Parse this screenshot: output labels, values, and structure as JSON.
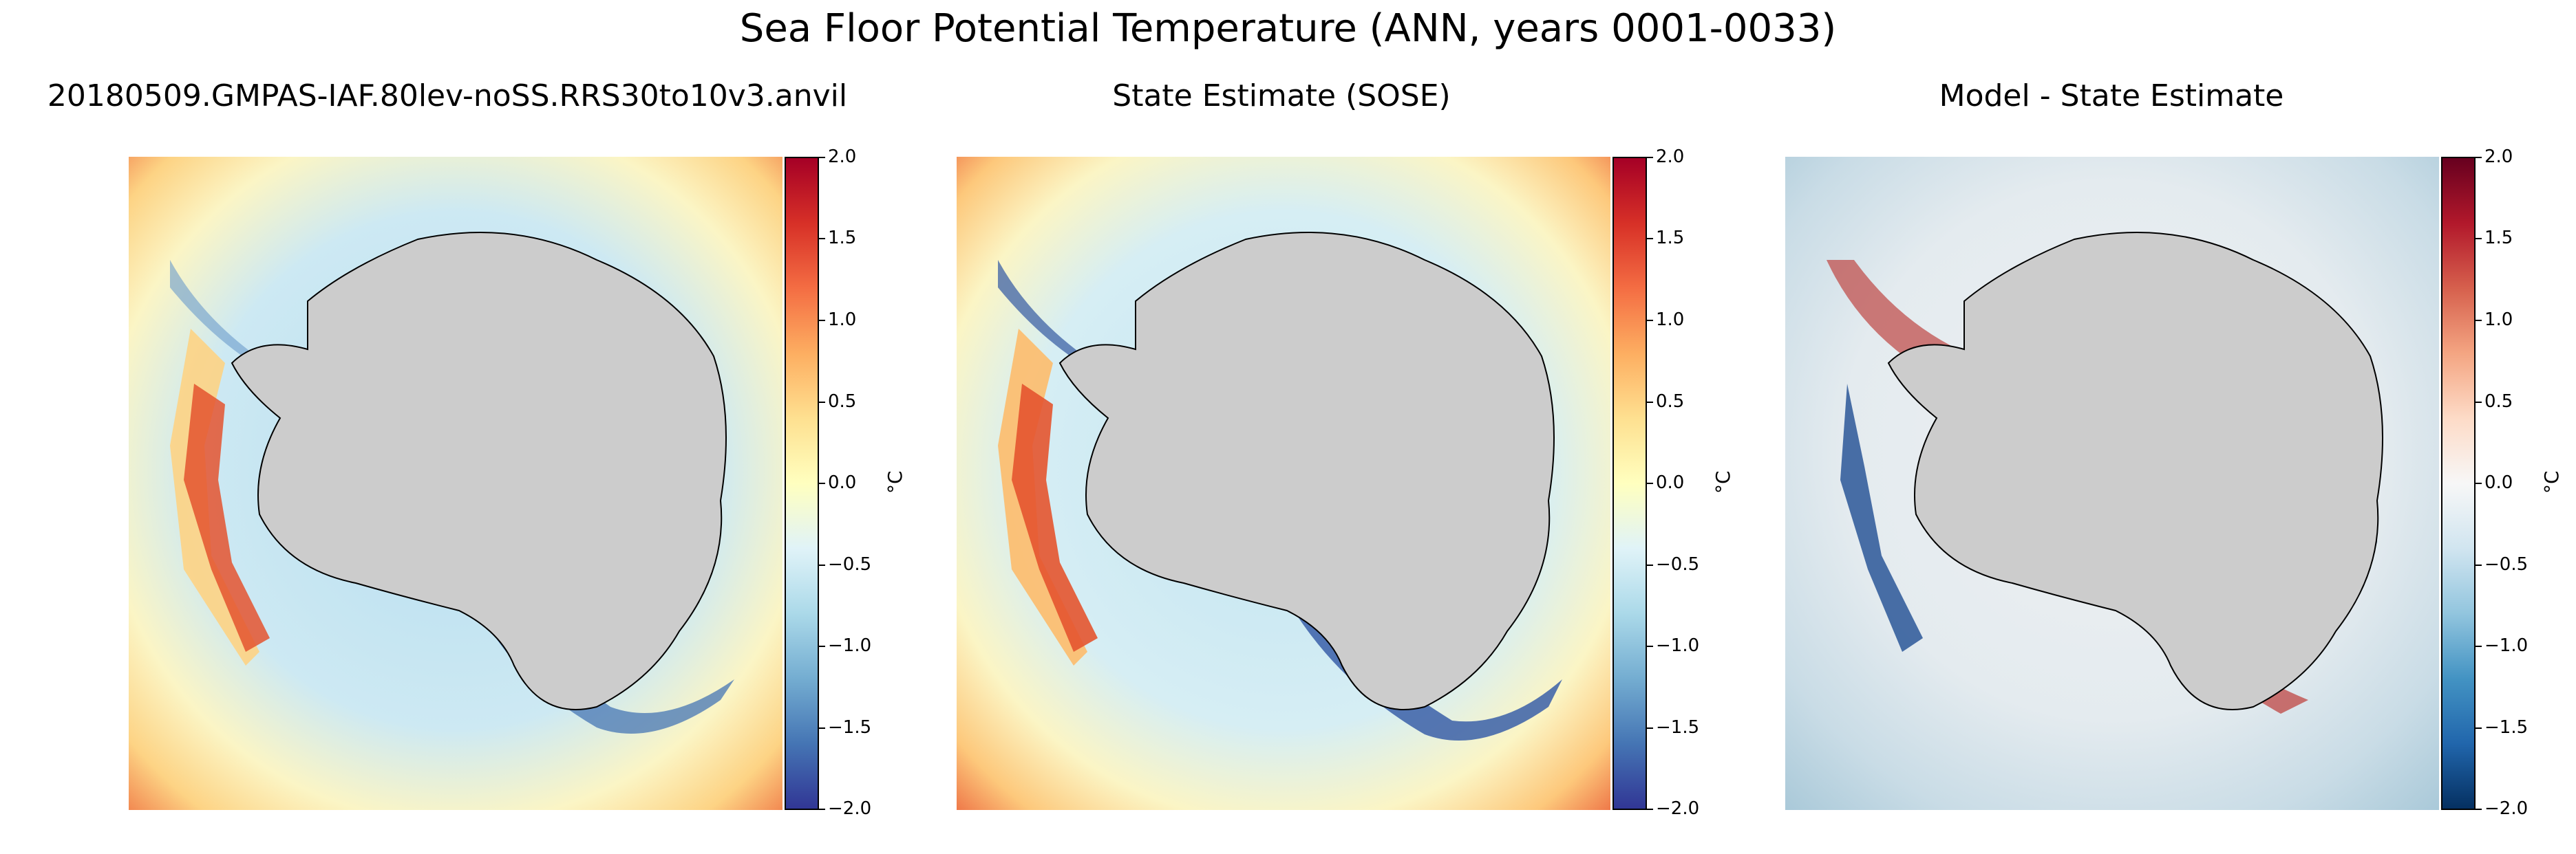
{
  "figure": {
    "title": "Sea Floor Potential Temperature (ANN, years 0001-0033)"
  },
  "panels": [
    {
      "title": "20180509.GMPAS-IAF.80lev-noSS.RRS30to10v3.anvil",
      "colormap": "RdYlBu_r",
      "colorbar": {
        "ticks": [
          "2.0",
          "1.5",
          "1.0",
          "0.5",
          "0.0",
          "−0.5",
          "−1.0",
          "−1.5",
          "−2.0"
        ],
        "unit": "°C",
        "range": [
          -2.0,
          2.0
        ]
      }
    },
    {
      "title": "State Estimate (SOSE)",
      "colormap": "RdYlBu_r",
      "colorbar": {
        "ticks": [
          "2.0",
          "1.5",
          "1.0",
          "0.5",
          "0.0",
          "−0.5",
          "−1.0",
          "−1.5",
          "−2.0"
        ],
        "unit": "°C",
        "range": [
          -2.0,
          2.0
        ]
      }
    },
    {
      "title": "Model - State Estimate",
      "colormap": "RdBu_r (diverging)",
      "colorbar": {
        "ticks": [
          "2.0",
          "1.5",
          "1.0",
          "0.5",
          "0.0",
          "−0.5",
          "−1.0",
          "−1.5",
          "−2.0"
        ],
        "unit": "°C",
        "range": [
          -2.0,
          2.0
        ]
      }
    }
  ],
  "colors": {
    "land": "#cccccc",
    "coastline": "#000000"
  }
}
